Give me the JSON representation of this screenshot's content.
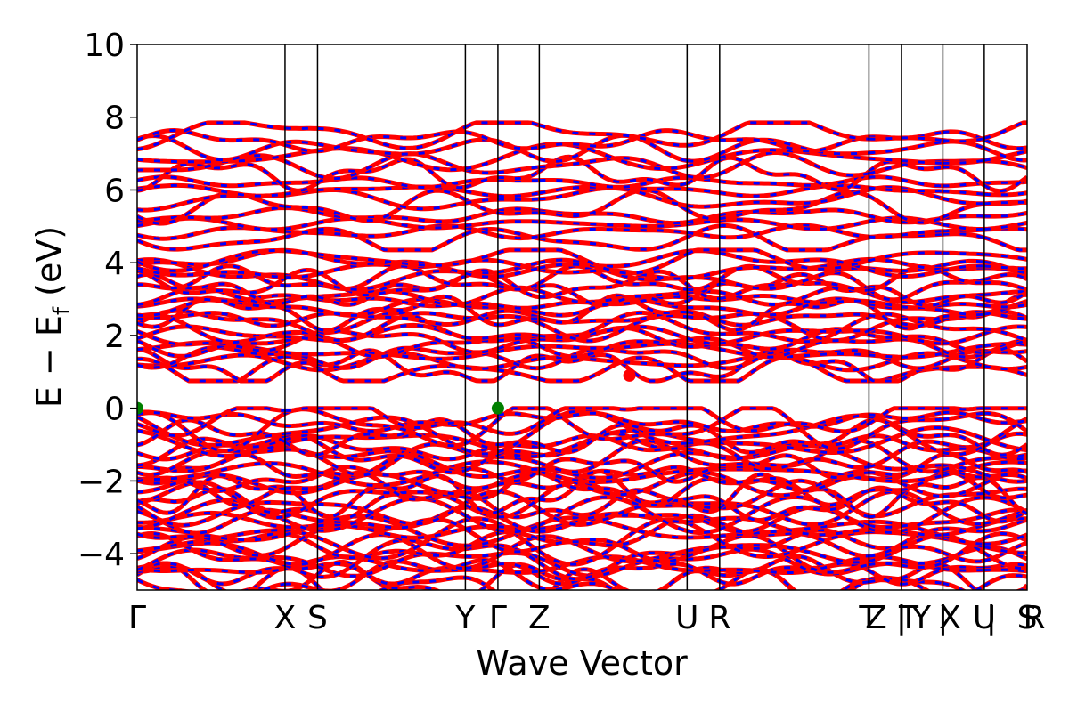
{
  "chart_data": {
    "type": "line",
    "title": "",
    "xlabel": "Wave Vector",
    "ylabel_main": "E − E",
    "ylabel_sub": "f",
    "ylabel_unit": "(eV)",
    "ylim": [
      -5,
      10
    ],
    "yticks": [
      -4,
      -2,
      0,
      2,
      4,
      6,
      8,
      10
    ],
    "ytick_labels": [
      "−4",
      "−2",
      "0",
      "2",
      "4",
      "6",
      "8",
      "10"
    ],
    "grid": false,
    "k_points": [
      {
        "label": "Γ",
        "x": 0.0
      },
      {
        "label": "X",
        "x": 1.0
      },
      {
        "label": "S",
        "x": 1.22
      },
      {
        "label": "Y",
        "x": 2.22
      },
      {
        "label": "Γ",
        "x": 2.44
      },
      {
        "label": "Z",
        "x": 2.72
      },
      {
        "label": "U",
        "x": 3.72
      },
      {
        "label": "R",
        "x": 3.94
      },
      {
        "label": "T",
        "x": 4.95
      },
      {
        "label": "Z",
        "x": 4.95
      },
      {
        "label": "|",
        "x": 5.17
      },
      {
        "label": "T",
        "x": 5.17
      },
      {
        "label": "Y",
        "x": 5.17
      },
      {
        "label": "|",
        "x": 5.45
      },
      {
        "label": "X",
        "x": 5.45
      },
      {
        "label": "U",
        "x": 5.73
      },
      {
        "label": "|",
        "x": 5.73
      },
      {
        "label": "S",
        "x": 6.02
      },
      {
        "label": "R",
        "x": 6.02
      }
    ],
    "x_range": [
      0.0,
      6.02
    ],
    "series": [
      {
        "color": "#ff0000",
        "style": "solid"
      },
      {
        "color": "#0000ff",
        "style": "dashed"
      }
    ],
    "markers": [
      {
        "label": "",
        "x": 0.0,
        "y": 0.0,
        "color": "#008000"
      },
      {
        "label": "",
        "x": 2.44,
        "y": 0.0,
        "color": "#008000"
      },
      {
        "label": "",
        "x": 3.33,
        "y": 0.9,
        "color": "#ff0000"
      }
    ],
    "bands_note": "",
    "bands": [
      {
        "region": "valence",
        "count": 34,
        "min": -5.0,
        "max": -0.15
      },
      {
        "region": "conduction_low",
        "count": 22,
        "min": 0.9,
        "max": 4.2
      },
      {
        "region": "conduction_high",
        "count": 14,
        "min": 4.5,
        "max": 7.7
      }
    ]
  }
}
